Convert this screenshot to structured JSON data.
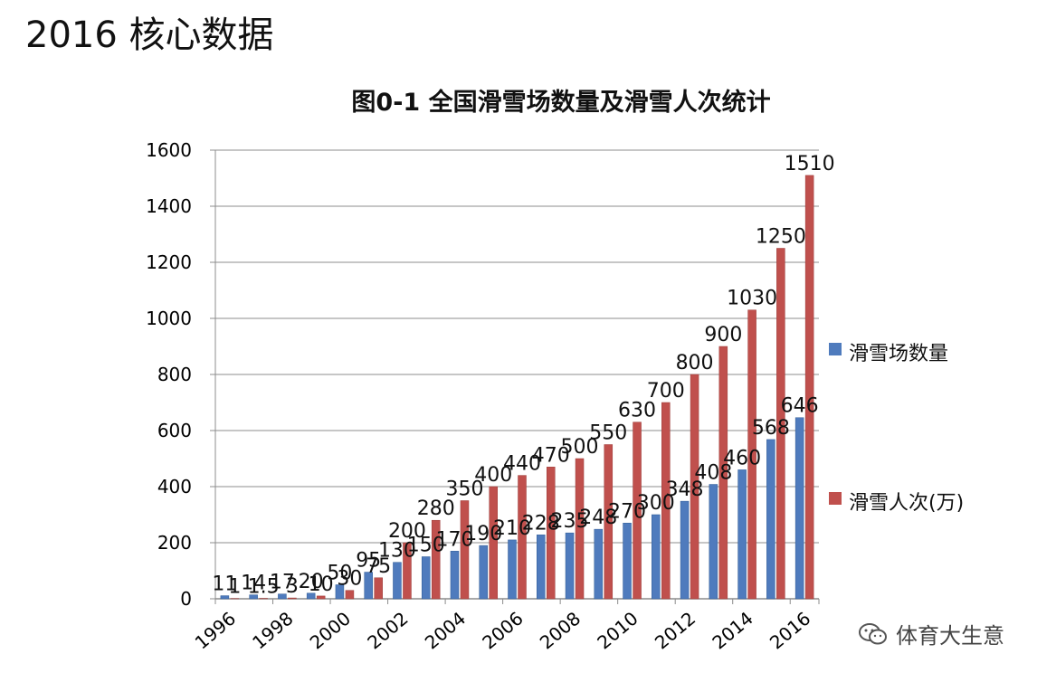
{
  "header": {
    "title": "2016 核心数据"
  },
  "watermark": {
    "text": "体育大生意",
    "icon": "wechat-icon"
  },
  "colors": {
    "series1": "#4f7bbd",
    "series2": "#c0504d",
    "grid": "#8c8c8c"
  },
  "chart_data": {
    "type": "bar",
    "title": "图0-1 全国滑雪场数量及滑雪人次统计",
    "xlabel": "",
    "ylabel": "",
    "ylim": [
      0,
      1600
    ],
    "yticks": [
      0,
      200,
      400,
      600,
      800,
      1000,
      1200,
      1400,
      1600
    ],
    "grid": true,
    "legend": "right",
    "categories": [
      "1996",
      "1997",
      "1998",
      "1999",
      "2000",
      "2001",
      "2002",
      "2003",
      "2004",
      "2005",
      "2006",
      "2007",
      "2008",
      "2009",
      "2010",
      "2011",
      "2012",
      "2013",
      "2014",
      "2015",
      "2016"
    ],
    "xtick_labels": [
      "1996",
      "1998",
      "2000",
      "2002",
      "2004",
      "2006",
      "2008",
      "2010",
      "2012",
      "2014",
      "2016"
    ],
    "series": [
      {
        "name": "滑雪场数量",
        "values": [
          11,
          14,
          17,
          20,
          50,
          95,
          130,
          150,
          170,
          190,
          210,
          228,
          235,
          248,
          270,
          300,
          348,
          408,
          460,
          568,
          646
        ]
      },
      {
        "name": "滑雪人次(万)",
        "values": [
          1,
          1.5,
          3,
          10,
          30,
          75,
          200,
          280,
          350,
          400,
          440,
          470,
          500,
          550,
          630,
          700,
          800,
          900,
          1030,
          1250,
          1510
        ]
      }
    ]
  }
}
